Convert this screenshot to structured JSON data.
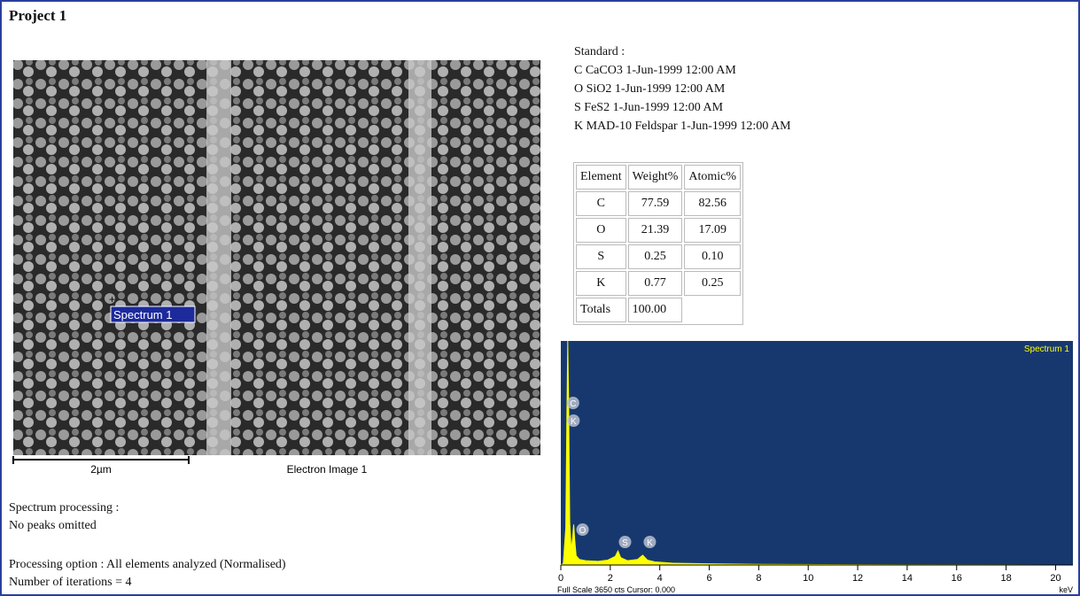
{
  "title": "Project 1",
  "image": {
    "marker": "Spectrum 1",
    "scale": "2µm",
    "caption": "Electron Image 1"
  },
  "standard": [
    "Standard :",
    "C CaCO3 1-Jun-1999 12:00 AM",
    "O SiO2 1-Jun-1999 12:00 AM",
    "S FeS2 1-Jun-1999 12:00 AM",
    "K MAD-10 Feldspar 1-Jun-1999 12:00 AM"
  ],
  "table": {
    "header": [
      "Element",
      "Weight%",
      "Atomic%"
    ],
    "rows": [
      [
        "C",
        "77.59",
        "82.56"
      ],
      [
        "O",
        "21.39",
        "17.09"
      ],
      [
        "S",
        "0.25",
        "0.10"
      ],
      [
        "K",
        "0.77",
        "0.25"
      ]
    ],
    "totals": [
      "Totals",
      "100.00"
    ]
  },
  "notes": [
    "Spectrum processing :",
    "No peaks omitted",
    "Processing option : All elements analyzed (Normalised)",
    "Number of iterations = 4"
  ],
  "chart_data": {
    "type": "area",
    "series": [
      {
        "name": "Spectrum 1",
        "color": "#ffff00",
        "x": [
          0,
          0.1,
          0.2,
          0.25,
          0.28,
          0.31,
          0.36,
          0.42,
          0.48,
          0.52,
          0.56,
          0.62,
          0.75,
          1.0,
          1.5,
          1.9,
          2.2,
          2.31,
          2.42,
          2.7,
          3.1,
          3.31,
          3.5,
          3.8,
          4.5,
          6,
          8,
          12,
          20
        ],
        "values": [
          0,
          20,
          600,
          2600,
          3650,
          2800,
          700,
          250,
          450,
          660,
          420,
          150,
          90,
          70,
          60,
          80,
          140,
          230,
          120,
          70,
          90,
          160,
          80,
          50,
          30,
          20,
          10,
          5,
          0
        ]
      }
    ],
    "peaks": [
      {
        "label": "C",
        "x": 0.28
      },
      {
        "label": "K",
        "x": 0.3
      },
      {
        "label": "O",
        "x": 0.52
      },
      {
        "label": "S",
        "x": 2.31
      },
      {
        "label": "K",
        "x": 3.31
      }
    ],
    "xlim": [
      0,
      20.7
    ],
    "ylim": [
      0,
      3650
    ],
    "xticks": [
      0,
      2,
      4,
      6,
      8,
      10,
      12,
      14,
      16,
      18,
      20
    ],
    "xlabel": "keV",
    "footer": "Full Scale 3650 cts Cursor: 0.000",
    "background": "#17386e"
  }
}
